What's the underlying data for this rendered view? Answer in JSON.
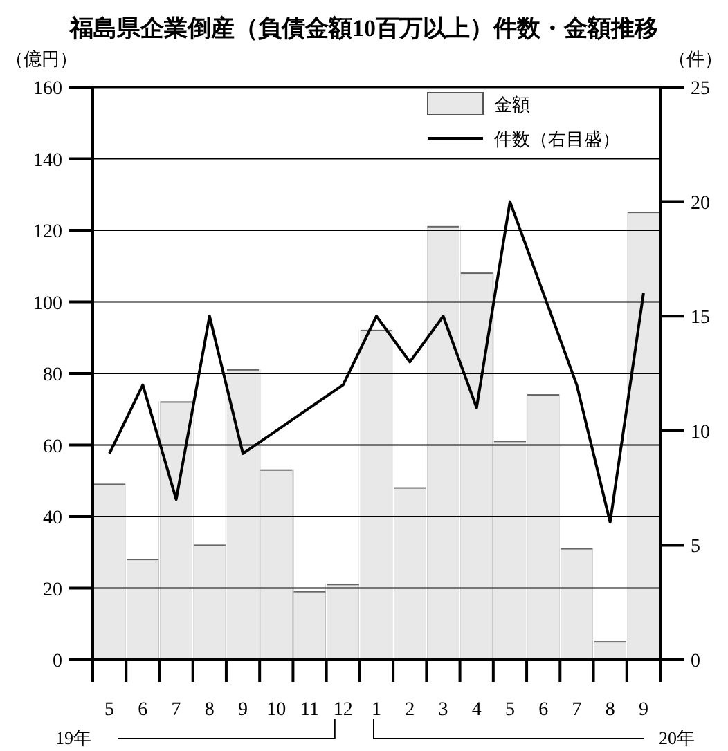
{
  "chart_data": {
    "type": "bar",
    "title": "福島県企業倒産（負債金額10百万以上）件数・金額推移",
    "ylabel": "（億円）",
    "y2label": "（件）",
    "categories": [
      "5",
      "6",
      "7",
      "8",
      "9",
      "10",
      "11",
      "12",
      "1",
      "2",
      "3",
      "4",
      "5",
      "6",
      "7",
      "8",
      "9"
    ],
    "series": [
      {
        "name": "金額",
        "color": "#e8e8e8",
        "values": [
          49,
          28,
          72,
          32,
          81,
          53,
          19,
          21,
          92,
          48,
          121,
          108,
          61,
          74,
          31,
          5,
          125
        ]
      },
      {
        "name": "件数（右目盛）",
        "type": "line",
        "axis": "y2",
        "color": "#000000",
        "values": [
          9,
          12,
          7,
          15,
          9,
          10,
          11,
          12,
          15,
          13,
          15,
          11,
          20,
          16,
          12,
          6,
          16
        ]
      }
    ],
    "ylim": [
      0,
      160
    ],
    "yticks": [
      0,
      20,
      40,
      60,
      80,
      100,
      120,
      140,
      160
    ],
    "y2lim": [
      0,
      25
    ],
    "y2ticks": [
      0,
      5,
      10,
      15,
      20,
      25
    ],
    "grid": "y",
    "legend": "top right",
    "annotations": [
      "19年",
      "20年"
    ]
  }
}
